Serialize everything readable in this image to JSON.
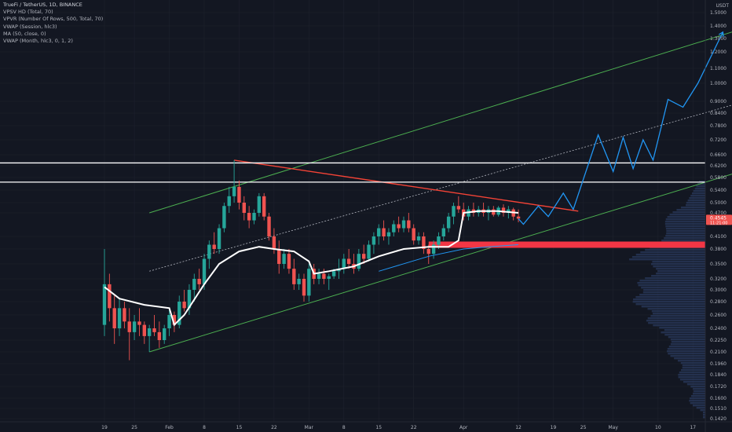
{
  "legend": {
    "symbol": "TrueFi / TetherUS, 1D, BINANCE",
    "indicators": [
      "VPSV HD (Total, 70)",
      "VPVR (Number Of Rows, 500, Total, 70)",
      "VWAP (Session, hlc3)",
      "MA (50, close, 0)",
      "VWAP (Month, hlc3, 0, 1, 2)"
    ]
  },
  "currency": "USDT",
  "colors": {
    "background": "#131722",
    "up": "#26a69a",
    "down": "#ef5350",
    "channel": "#4caf50",
    "forecast": "#2196f3",
    "resistance": "#ffffff",
    "support": "#f23645",
    "downtrend": "#f44336",
    "vwap": "#ffffff",
    "midline": "#b2b5be",
    "volume_profile": "#2a3a5c",
    "axis_text": "#b2b5be"
  },
  "chart_data": {
    "type": "candlestick",
    "scale": "log",
    "x_axis_labels": [
      "19",
      "25",
      "Feb",
      "8",
      "15",
      "22",
      "Mar",
      "8",
      "15",
      "22",
      "Apr",
      "12",
      "19",
      "25",
      "May",
      "10",
      "17"
    ],
    "x_axis_label_dates": [
      "2021-01-19",
      "2021-01-25",
      "2021-02-01",
      "2021-02-08",
      "2021-02-15",
      "2021-02-22",
      "2021-03-01",
      "2021-03-08",
      "2021-03-15",
      "2021-03-22",
      "2021-04-01",
      "2021-04-12",
      "2021-04-19",
      "2021-04-25",
      "2021-05-01",
      "2021-05-10",
      "2021-05-17"
    ],
    "y_axis_labels": [
      "1.5000",
      "1.4000",
      "1.3000",
      "1.2000",
      "1.1000",
      "1.0000",
      "0.9000",
      "0.8400",
      "0.7800",
      "0.7200",
      "0.6600",
      "0.6200",
      "0.5800",
      "0.5400",
      "0.5000",
      "0.4700",
      "0.4100",
      "0.3800",
      "0.3500",
      "0.3200",
      "0.3000",
      "0.2800",
      "0.2600",
      "0.2400",
      "0.2250",
      "0.2100",
      "0.1960",
      "0.1840",
      "0.1720",
      "0.1600",
      "0.1510",
      "0.1420"
    ],
    "ylim": [
      0.142,
      1.55
    ],
    "last_price": {
      "value": "0.4545",
      "sub": "11:21:00"
    },
    "candles": [
      {
        "date": "2021-01-19",
        "o": 0.245,
        "h": 0.38,
        "l": 0.23,
        "c": 0.31
      },
      {
        "date": "2021-01-20",
        "o": 0.31,
        "h": 0.33,
        "l": 0.25,
        "c": 0.27
      },
      {
        "date": "2021-01-21",
        "o": 0.27,
        "h": 0.29,
        "l": 0.22,
        "c": 0.24
      },
      {
        "date": "2021-01-22",
        "o": 0.24,
        "h": 0.285,
        "l": 0.23,
        "c": 0.27
      },
      {
        "date": "2021-01-23",
        "o": 0.27,
        "h": 0.28,
        "l": 0.24,
        "c": 0.25
      },
      {
        "date": "2021-01-24",
        "o": 0.25,
        "h": 0.27,
        "l": 0.2,
        "c": 0.235
      },
      {
        "date": "2021-01-25",
        "o": 0.235,
        "h": 0.26,
        "l": 0.225,
        "c": 0.25
      },
      {
        "date": "2021-01-26",
        "o": 0.25,
        "h": 0.27,
        "l": 0.23,
        "c": 0.245
      },
      {
        "date": "2021-01-27",
        "o": 0.245,
        "h": 0.25,
        "l": 0.22,
        "c": 0.23
      },
      {
        "date": "2021-01-28",
        "o": 0.23,
        "h": 0.245,
        "l": 0.21,
        "c": 0.24
      },
      {
        "date": "2021-01-29",
        "o": 0.24,
        "h": 0.26,
        "l": 0.23,
        "c": 0.235
      },
      {
        "date": "2021-01-30",
        "o": 0.235,
        "h": 0.25,
        "l": 0.215,
        "c": 0.225
      },
      {
        "date": "2021-01-31",
        "o": 0.225,
        "h": 0.245,
        "l": 0.22,
        "c": 0.24
      },
      {
        "date": "2021-02-01",
        "o": 0.24,
        "h": 0.27,
        "l": 0.23,
        "c": 0.26
      },
      {
        "date": "2021-02-02",
        "o": 0.26,
        "h": 0.265,
        "l": 0.235,
        "c": 0.245
      },
      {
        "date": "2021-02-03",
        "o": 0.245,
        "h": 0.29,
        "l": 0.24,
        "c": 0.28
      },
      {
        "date": "2021-02-04",
        "o": 0.28,
        "h": 0.3,
        "l": 0.265,
        "c": 0.27
      },
      {
        "date": "2021-02-05",
        "o": 0.27,
        "h": 0.31,
        "l": 0.26,
        "c": 0.3
      },
      {
        "date": "2021-02-06",
        "o": 0.3,
        "h": 0.33,
        "l": 0.28,
        "c": 0.32
      },
      {
        "date": "2021-02-07",
        "o": 0.32,
        "h": 0.34,
        "l": 0.3,
        "c": 0.31
      },
      {
        "date": "2021-02-08",
        "o": 0.31,
        "h": 0.37,
        "l": 0.3,
        "c": 0.36
      },
      {
        "date": "2021-02-09",
        "o": 0.36,
        "h": 0.4,
        "l": 0.34,
        "c": 0.39
      },
      {
        "date": "2021-02-10",
        "o": 0.39,
        "h": 0.42,
        "l": 0.37,
        "c": 0.38
      },
      {
        "date": "2021-02-11",
        "o": 0.38,
        "h": 0.44,
        "l": 0.37,
        "c": 0.43
      },
      {
        "date": "2021-02-12",
        "o": 0.43,
        "h": 0.5,
        "l": 0.42,
        "c": 0.49
      },
      {
        "date": "2021-02-13",
        "o": 0.49,
        "h": 0.55,
        "l": 0.47,
        "c": 0.52
      },
      {
        "date": "2021-02-14",
        "o": 0.52,
        "h": 0.64,
        "l": 0.5,
        "c": 0.55
      },
      {
        "date": "2021-02-15",
        "o": 0.55,
        "h": 0.57,
        "l": 0.48,
        "c": 0.5
      },
      {
        "date": "2021-02-16",
        "o": 0.5,
        "h": 0.52,
        "l": 0.45,
        "c": 0.47
      },
      {
        "date": "2021-02-17",
        "o": 0.47,
        "h": 0.49,
        "l": 0.43,
        "c": 0.45
      },
      {
        "date": "2021-02-18",
        "o": 0.45,
        "h": 0.48,
        "l": 0.44,
        "c": 0.47
      },
      {
        "date": "2021-02-19",
        "o": 0.47,
        "h": 0.53,
        "l": 0.46,
        "c": 0.52
      },
      {
        "date": "2021-02-20",
        "o": 0.52,
        "h": 0.53,
        "l": 0.45,
        "c": 0.46
      },
      {
        "date": "2021-02-21",
        "o": 0.46,
        "h": 0.47,
        "l": 0.4,
        "c": 0.41
      },
      {
        "date": "2021-02-22",
        "o": 0.41,
        "h": 0.43,
        "l": 0.37,
        "c": 0.38
      },
      {
        "date": "2021-02-23",
        "o": 0.38,
        "h": 0.4,
        "l": 0.33,
        "c": 0.35
      },
      {
        "date": "2021-02-24",
        "o": 0.35,
        "h": 0.38,
        "l": 0.34,
        "c": 0.37
      },
      {
        "date": "2021-02-25",
        "o": 0.37,
        "h": 0.38,
        "l": 0.33,
        "c": 0.34
      },
      {
        "date": "2021-02-26",
        "o": 0.34,
        "h": 0.36,
        "l": 0.3,
        "c": 0.31
      },
      {
        "date": "2021-02-27",
        "o": 0.31,
        "h": 0.33,
        "l": 0.3,
        "c": 0.32
      },
      {
        "date": "2021-02-28",
        "o": 0.32,
        "h": 0.33,
        "l": 0.28,
        "c": 0.29
      },
      {
        "date": "2021-03-01",
        "o": 0.29,
        "h": 0.35,
        "l": 0.28,
        "c": 0.34
      },
      {
        "date": "2021-03-02",
        "o": 0.34,
        "h": 0.35,
        "l": 0.31,
        "c": 0.32
      },
      {
        "date": "2021-03-03",
        "o": 0.32,
        "h": 0.34,
        "l": 0.31,
        "c": 0.33
      },
      {
        "date": "2021-03-04",
        "o": 0.33,
        "h": 0.34,
        "l": 0.31,
        "c": 0.32
      },
      {
        "date": "2021-03-05",
        "o": 0.32,
        "h": 0.33,
        "l": 0.3,
        "c": 0.325
      },
      {
        "date": "2021-03-06",
        "o": 0.325,
        "h": 0.34,
        "l": 0.32,
        "c": 0.335
      },
      {
        "date": "2021-03-07",
        "o": 0.335,
        "h": 0.36,
        "l": 0.32,
        "c": 0.34
      },
      {
        "date": "2021-03-08",
        "o": 0.34,
        "h": 0.37,
        "l": 0.33,
        "c": 0.36
      },
      {
        "date": "2021-03-09",
        "o": 0.36,
        "h": 0.38,
        "l": 0.34,
        "c": 0.35
      },
      {
        "date": "2021-03-10",
        "o": 0.35,
        "h": 0.37,
        "l": 0.33,
        "c": 0.34
      },
      {
        "date": "2021-03-11",
        "o": 0.34,
        "h": 0.38,
        "l": 0.335,
        "c": 0.37
      },
      {
        "date": "2021-03-12",
        "o": 0.37,
        "h": 0.39,
        "l": 0.35,
        "c": 0.36
      },
      {
        "date": "2021-03-13",
        "o": 0.36,
        "h": 0.4,
        "l": 0.355,
        "c": 0.39
      },
      {
        "date": "2021-03-14",
        "o": 0.39,
        "h": 0.42,
        "l": 0.37,
        "c": 0.41
      },
      {
        "date": "2021-03-15",
        "o": 0.41,
        "h": 0.44,
        "l": 0.39,
        "c": 0.43
      },
      {
        "date": "2021-03-16",
        "o": 0.43,
        "h": 0.45,
        "l": 0.4,
        "c": 0.41
      },
      {
        "date": "2021-03-17",
        "o": 0.41,
        "h": 0.43,
        "l": 0.39,
        "c": 0.42
      },
      {
        "date": "2021-03-18",
        "o": 0.42,
        "h": 0.45,
        "l": 0.41,
        "c": 0.44
      },
      {
        "date": "2021-03-19",
        "o": 0.44,
        "h": 0.46,
        "l": 0.42,
        "c": 0.43
      },
      {
        "date": "2021-03-20",
        "o": 0.43,
        "h": 0.46,
        "l": 0.42,
        "c": 0.45
      },
      {
        "date": "2021-03-21",
        "o": 0.45,
        "h": 0.47,
        "l": 0.42,
        "c": 0.43
      },
      {
        "date": "2021-03-22",
        "o": 0.43,
        "h": 0.44,
        "l": 0.39,
        "c": 0.4
      },
      {
        "date": "2021-03-23",
        "o": 0.4,
        "h": 0.42,
        "l": 0.39,
        "c": 0.41
      },
      {
        "date": "2021-03-24",
        "o": 0.41,
        "h": 0.42,
        "l": 0.37,
        "c": 0.38
      },
      {
        "date": "2021-03-25",
        "o": 0.38,
        "h": 0.39,
        "l": 0.35,
        "c": 0.37
      },
      {
        "date": "2021-03-26",
        "o": 0.37,
        "h": 0.4,
        "l": 0.36,
        "c": 0.39
      },
      {
        "date": "2021-03-27",
        "o": 0.39,
        "h": 0.42,
        "l": 0.38,
        "c": 0.41
      },
      {
        "date": "2021-03-28",
        "o": 0.41,
        "h": 0.44,
        "l": 0.4,
        "c": 0.43
      },
      {
        "date": "2021-03-29",
        "o": 0.43,
        "h": 0.47,
        "l": 0.42,
        "c": 0.46
      },
      {
        "date": "2021-03-30",
        "o": 0.46,
        "h": 0.5,
        "l": 0.44,
        "c": 0.49
      },
      {
        "date": "2021-03-31",
        "o": 0.49,
        "h": 0.52,
        "l": 0.47,
        "c": 0.48
      },
      {
        "date": "2021-04-01",
        "o": 0.48,
        "h": 0.5,
        "l": 0.45,
        "c": 0.46
      },
      {
        "date": "2021-04-02",
        "o": 0.46,
        "h": 0.49,
        "l": 0.45,
        "c": 0.48
      },
      {
        "date": "2021-04-03",
        "o": 0.48,
        "h": 0.5,
        "l": 0.46,
        "c": 0.47
      },
      {
        "date": "2021-04-04",
        "o": 0.47,
        "h": 0.49,
        "l": 0.46,
        "c": 0.48
      },
      {
        "date": "2021-04-05",
        "o": 0.48,
        "h": 0.5,
        "l": 0.46,
        "c": 0.47
      },
      {
        "date": "2021-04-06",
        "o": 0.47,
        "h": 0.49,
        "l": 0.45,
        "c": 0.48
      },
      {
        "date": "2021-04-07",
        "o": 0.48,
        "h": 0.49,
        "l": 0.46,
        "c": 0.465
      },
      {
        "date": "2021-04-08",
        "o": 0.465,
        "h": 0.49,
        "l": 0.46,
        "c": 0.485
      },
      {
        "date": "2021-04-09",
        "o": 0.485,
        "h": 0.495,
        "l": 0.46,
        "c": 0.47
      },
      {
        "date": "2021-04-10",
        "o": 0.47,
        "h": 0.49,
        "l": 0.455,
        "c": 0.48
      },
      {
        "date": "2021-04-11",
        "o": 0.48,
        "h": 0.485,
        "l": 0.45,
        "c": 0.46
      },
      {
        "date": "2021-04-12",
        "o": 0.46,
        "h": 0.48,
        "l": 0.445,
        "c": 0.4545
      }
    ],
    "forecast_path": [
      {
        "date": "2021-04-12",
        "v": 0.4545
      },
      {
        "date": "2021-04-13",
        "v": 0.44
      },
      {
        "date": "2021-04-16",
        "v": 0.49
      },
      {
        "date": "2021-04-18",
        "v": 0.46
      },
      {
        "date": "2021-04-21",
        "v": 0.53
      },
      {
        "date": "2021-04-23",
        "v": 0.48
      },
      {
        "date": "2021-04-28",
        "v": 0.74
      },
      {
        "date": "2021-05-01",
        "v": 0.6
      },
      {
        "date": "2021-05-03",
        "v": 0.73
      },
      {
        "date": "2021-05-05",
        "v": 0.61
      },
      {
        "date": "2021-05-07",
        "v": 0.72
      },
      {
        "date": "2021-05-09",
        "v": 0.64
      },
      {
        "date": "2021-05-12",
        "v": 0.91
      },
      {
        "date": "2021-05-15",
        "v": 0.87
      },
      {
        "date": "2021-05-18",
        "v": 1.0
      },
      {
        "date": "2021-05-23",
        "v": 1.35
      }
    ],
    "channel_upper": [
      {
        "date": "2021-01-28",
        "v": 0.47
      },
      {
        "date": "2021-06-03",
        "v": 1.46
      }
    ],
    "channel_lower": [
      {
        "date": "2021-01-28",
        "v": 0.21
      },
      {
        "date": "2021-06-03",
        "v": 0.64
      }
    ],
    "channel_mid": [
      {
        "date": "2021-01-28",
        "v": 0.335
      },
      {
        "date": "2021-06-03",
        "v": 0.95
      }
    ],
    "downtrend_line": [
      {
        "date": "2021-02-14",
        "v": 0.64
      },
      {
        "date": "2021-04-24",
        "v": 0.475
      }
    ],
    "resistance_levels": [
      0.63,
      0.565
    ],
    "support_zone": {
      "from": "2021-03-25",
      "value": 0.39
    },
    "vwap_month": [
      {
        "date": "2021-01-19",
        "v": 0.305
      },
      {
        "date": "2021-01-22",
        "v": 0.285
      },
      {
        "date": "2021-01-27",
        "v": 0.275
      },
      {
        "date": "2021-02-01",
        "v": 0.27
      },
      {
        "date": "2021-02-02",
        "v": 0.245
      },
      {
        "date": "2021-02-04",
        "v": 0.26
      },
      {
        "date": "2021-02-08",
        "v": 0.31
      },
      {
        "date": "2021-02-11",
        "v": 0.35
      },
      {
        "date": "2021-02-15",
        "v": 0.375
      },
      {
        "date": "2021-02-19",
        "v": 0.385
      },
      {
        "date": "2021-02-22",
        "v": 0.38
      },
      {
        "date": "2021-02-26",
        "v": 0.375
      },
      {
        "date": "2021-03-01",
        "v": 0.355
      },
      {
        "date": "2021-03-02",
        "v": 0.33
      },
      {
        "date": "2021-03-05",
        "v": 0.335
      },
      {
        "date": "2021-03-10",
        "v": 0.345
      },
      {
        "date": "2021-03-15",
        "v": 0.365
      },
      {
        "date": "2021-03-20",
        "v": 0.38
      },
      {
        "date": "2021-03-25",
        "v": 0.385
      },
      {
        "date": "2021-03-29",
        "v": 0.385
      },
      {
        "date": "2021-03-31",
        "v": 0.4
      },
      {
        "date": "2021-04-01",
        "v": 0.47
      },
      {
        "date": "2021-04-04",
        "v": 0.475
      },
      {
        "date": "2021-04-08",
        "v": 0.475
      },
      {
        "date": "2021-04-12",
        "v": 0.47
      }
    ],
    "ma50": [
      {
        "date": "2021-03-15",
        "v": 0.335
      },
      {
        "date": "2021-03-25",
        "v": 0.365
      },
      {
        "date": "2021-04-01",
        "v": 0.38
      },
      {
        "date": "2021-04-06",
        "v": 0.385
      },
      {
        "date": "2021-04-12",
        "v": 0.39
      }
    ]
  }
}
